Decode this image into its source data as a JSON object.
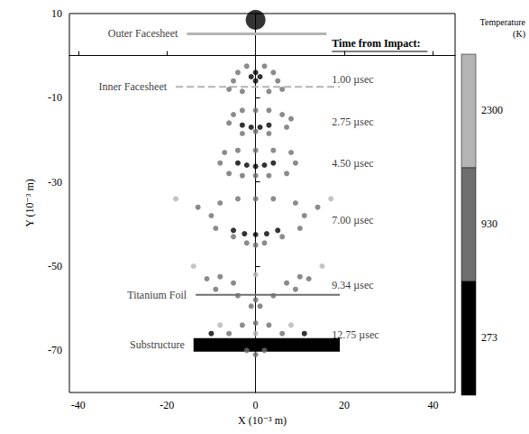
{
  "chart_data": {
    "type": "scatter",
    "x_label": "X (10⁻³ m)",
    "y_label": "Y (10⁻³ m)",
    "xlim": [
      -42,
      45
    ],
    "xticks": [
      -40,
      -20,
      0,
      20,
      40
    ],
    "ylim": [
      -80,
      10
    ],
    "yticks": [
      10,
      -10,
      -30,
      -50,
      -70
    ],
    "grid": false,
    "annotation": "Time from Impact:",
    "colorbar": {
      "title": "Temperature (K)",
      "levels": [
        273,
        930,
        2300
      ],
      "colors": [
        "#000000",
        "#6e6e6e",
        "#b4b4b4"
      ]
    },
    "projectile": {
      "x": 0,
      "y": 8.5,
      "temperature": 273
    },
    "layers": [
      {
        "name": "Outer Facesheet",
        "y": 5.2,
        "x0": -15.5,
        "x1": 16,
        "temperature": 2300,
        "line_style": "solid"
      },
      {
        "name": "Inner Facesheet",
        "y": -7.4,
        "x0": -18,
        "x1": 19,
        "temperature": 2300,
        "line_style": "dashed"
      },
      {
        "name": "Titanium Foil",
        "y": -56.8,
        "x0": -13.5,
        "x1": 19,
        "temperature": 930,
        "line_style": "solid"
      },
      {
        "name": "Substructure",
        "y": -68.7,
        "x0": -14,
        "x1": 19,
        "temperature": 273,
        "line_style": "solid"
      }
    ],
    "clouds": [
      {
        "time": "1.00 µsec",
        "points": [
          [
            -4,
            -4,
            930
          ],
          [
            4,
            -4,
            930
          ],
          [
            -5,
            -6,
            930
          ],
          [
            5,
            -6,
            930
          ],
          [
            -3,
            -8.5,
            930
          ],
          [
            3,
            -8.5,
            930
          ],
          [
            -2,
            -2.5,
            930
          ],
          [
            2,
            -2.5,
            930
          ],
          [
            -6,
            -8,
            930
          ],
          [
            6,
            -8,
            930
          ],
          [
            0,
            -4,
            273
          ],
          [
            -1,
            -5,
            273
          ],
          [
            1,
            -5,
            273
          ],
          [
            0,
            -6,
            273
          ]
        ]
      },
      {
        "time": "2.75 µsec",
        "points": [
          [
            -5,
            -14,
            930
          ],
          [
            -3,
            -13,
            930
          ],
          [
            0,
            -13,
            930
          ],
          [
            3,
            -13,
            930
          ],
          [
            6,
            -14,
            930
          ],
          [
            8,
            -15,
            930
          ],
          [
            -6,
            -16,
            930
          ],
          [
            7,
            -17,
            930
          ],
          [
            -3,
            -18.5,
            930
          ],
          [
            3,
            -18.5,
            930
          ],
          [
            0,
            -18,
            930
          ],
          [
            -3,
            -16.5,
            273
          ],
          [
            -1,
            -17,
            273
          ],
          [
            1,
            -17,
            273
          ],
          [
            3,
            -16.5,
            273
          ]
        ]
      },
      {
        "time": "4.50 µsec",
        "points": [
          [
            -7,
            -23,
            930
          ],
          [
            -4,
            -22.5,
            930
          ],
          [
            0,
            -22.5,
            930
          ],
          [
            4,
            -22.5,
            930
          ],
          [
            8,
            -23,
            930
          ],
          [
            -8,
            -25.5,
            930
          ],
          [
            9,
            -25.5,
            930
          ],
          [
            -6,
            -28,
            930
          ],
          [
            7,
            -28,
            930
          ],
          [
            0,
            -28.5,
            930
          ],
          [
            -3,
            -28.5,
            930
          ],
          [
            3,
            -28.5,
            930
          ],
          [
            -4,
            -25.5,
            273
          ],
          [
            -2,
            -26,
            273
          ],
          [
            0,
            -26.3,
            273
          ],
          [
            2,
            -26,
            273
          ],
          [
            4,
            -25.5,
            273
          ]
        ]
      },
      {
        "time": "7.00 µsec",
        "points": [
          [
            -8,
            -35,
            930
          ],
          [
            -4,
            -34,
            930
          ],
          [
            0,
            -34,
            930
          ],
          [
            4,
            -34,
            930
          ],
          [
            9,
            -35,
            930
          ],
          [
            -10,
            -38,
            930
          ],
          [
            11,
            -38,
            930
          ],
          [
            -9,
            -41,
            930
          ],
          [
            10,
            -41,
            930
          ],
          [
            -5,
            -43,
            930
          ],
          [
            6,
            -43,
            930
          ],
          [
            0,
            -45,
            930
          ],
          [
            -2,
            -44.5,
            930
          ],
          [
            2,
            -44.5,
            930
          ],
          [
            -13,
            -36,
            930
          ],
          [
            14,
            -36,
            930
          ],
          [
            -5,
            -41.5,
            273
          ],
          [
            -2.5,
            -42.3,
            273
          ],
          [
            0,
            -42.5,
            273
          ],
          [
            2.5,
            -42.3,
            273
          ],
          [
            5,
            -41.5,
            273
          ],
          [
            -18,
            -34,
            2300
          ],
          [
            17,
            -34,
            2300
          ]
        ]
      },
      {
        "time": "9.34 µsec",
        "points": [
          [
            -11,
            -53,
            930
          ],
          [
            -8,
            -52.5,
            930
          ],
          [
            -5,
            -54,
            930
          ],
          [
            -9,
            -55.5,
            930
          ],
          [
            7,
            -54,
            930
          ],
          [
            10,
            -52.5,
            930
          ],
          [
            12,
            -53,
            930
          ],
          [
            9,
            -55.5,
            930
          ],
          [
            0,
            -58,
            930
          ],
          [
            1,
            -59.5,
            930
          ],
          [
            -1,
            -59.5,
            930
          ],
          [
            -4,
            -57,
            930
          ],
          [
            4,
            -57,
            930
          ],
          [
            -14,
            -50,
            2300
          ],
          [
            15,
            -50,
            2300
          ],
          [
            0,
            -52,
            2300
          ]
        ]
      },
      {
        "time": "12.75 µsec",
        "points": [
          [
            -3,
            -64,
            930
          ],
          [
            0,
            -63.5,
            930
          ],
          [
            3,
            -64,
            930
          ],
          [
            -6,
            -66,
            930
          ],
          [
            6,
            -66,
            930
          ],
          [
            -2,
            -70,
            930
          ],
          [
            2,
            -70,
            930
          ],
          [
            0,
            -71,
            930
          ],
          [
            0,
            -66,
            2300
          ],
          [
            -8,
            -64,
            2300
          ],
          [
            8,
            -64,
            2300
          ],
          [
            -10,
            -66,
            273
          ],
          [
            11,
            -66,
            273
          ]
        ]
      }
    ]
  }
}
